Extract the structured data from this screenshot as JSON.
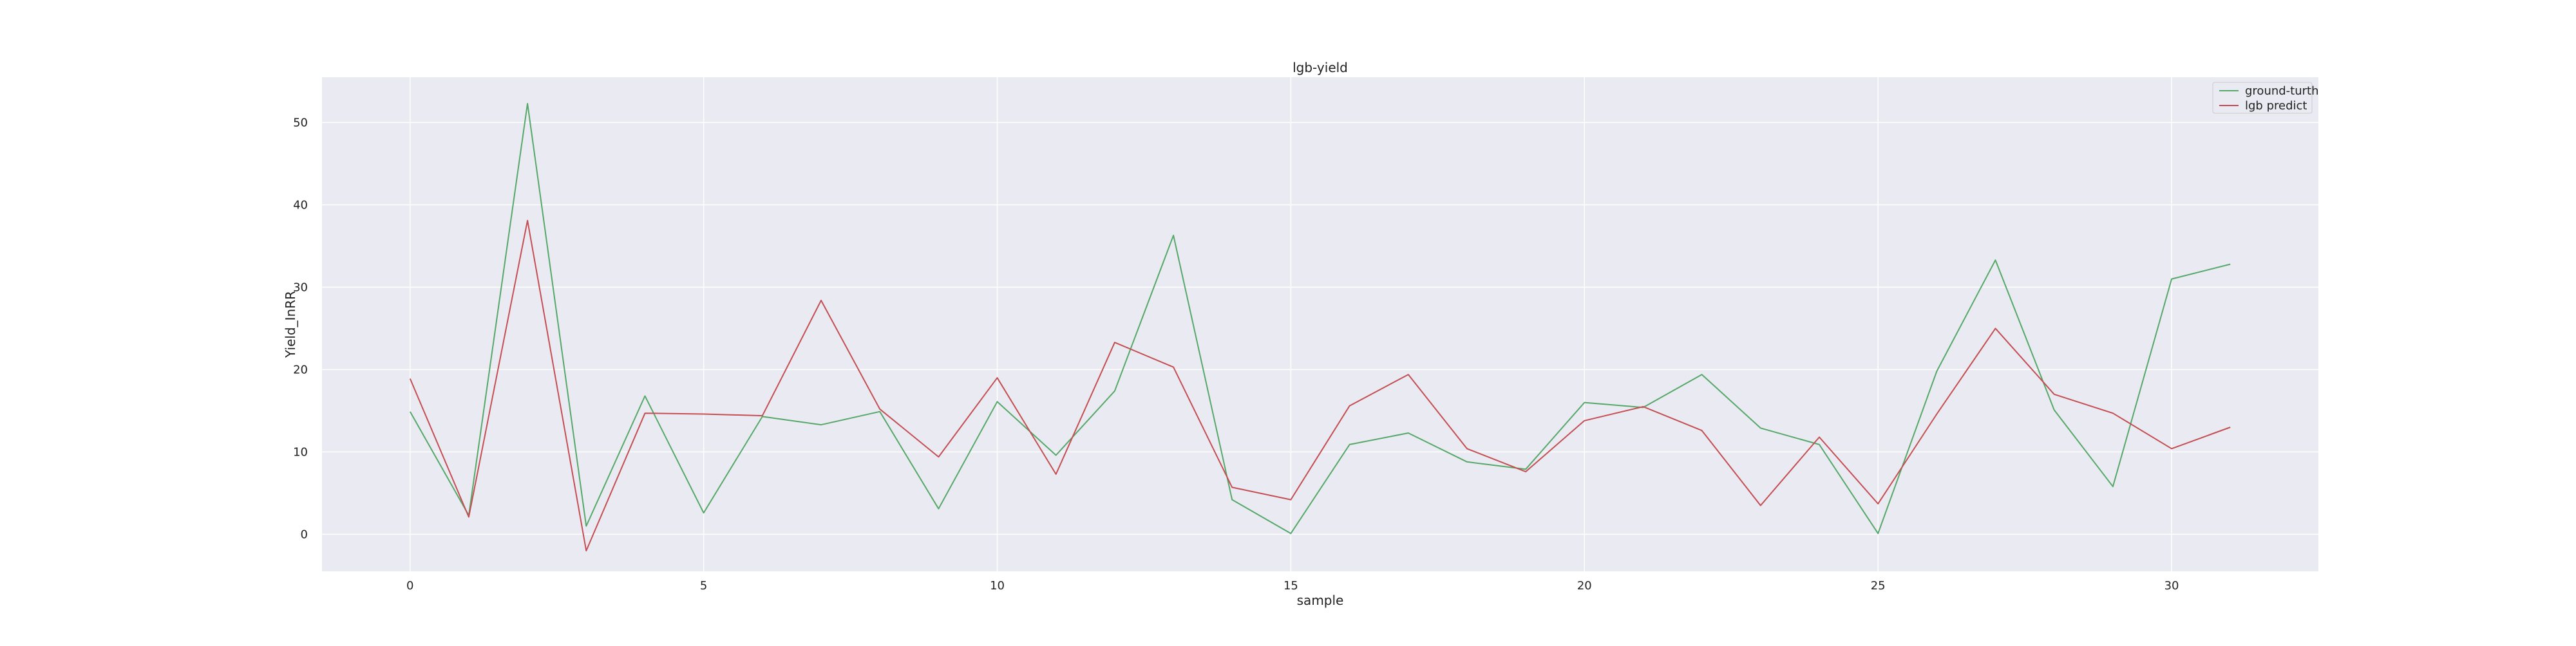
{
  "chart_data": {
    "type": "line",
    "title": "lgb-yield",
    "xlabel": "sample",
    "ylabel": "Yield_InRR",
    "xlim": [
      -1.5,
      32.5
    ],
    "ylim": [
      -4.5,
      55.5
    ],
    "xticks": [
      0,
      5,
      10,
      15,
      20,
      25,
      30
    ],
    "yticks": [
      0,
      10,
      20,
      30,
      40,
      50
    ],
    "grid": true,
    "legend_position": "top-right",
    "background": "#eaeaf2",
    "x": [
      0,
      1,
      2,
      3,
      4,
      5,
      6,
      7,
      8,
      9,
      10,
      11,
      12,
      13,
      14,
      15,
      16,
      17,
      18,
      19,
      20,
      21,
      22,
      23,
      24,
      25,
      26,
      27,
      28,
      29,
      30,
      31
    ],
    "series": [
      {
        "name": "ground-turth",
        "color": "#55a868",
        "values": [
          14.9,
          2.3,
          52.3,
          1.0,
          16.8,
          2.6,
          14.3,
          13.3,
          14.9,
          3.1,
          16.1,
          9.6,
          17.4,
          36.3,
          4.2,
          0.1,
          10.9,
          12.3,
          8.8,
          7.9,
          16.0,
          15.4,
          19.4,
          12.9,
          10.9,
          0.1,
          19.8,
          33.3,
          15.1,
          5.8,
          31.0,
          32.8
        ]
      },
      {
        "name": "lgb predict",
        "color": "#c44e52",
        "values": [
          18.9,
          2.1,
          38.1,
          -2.0,
          14.7,
          14.6,
          14.4,
          28.4,
          15.2,
          9.4,
          19.0,
          7.3,
          23.3,
          20.3,
          5.7,
          4.2,
          15.6,
          19.4,
          10.4,
          7.6,
          13.8,
          15.5,
          12.6,
          3.5,
          11.8,
          3.7,
          14.6,
          25.0,
          17.0,
          14.7,
          10.4,
          13.0
        ]
      }
    ]
  }
}
